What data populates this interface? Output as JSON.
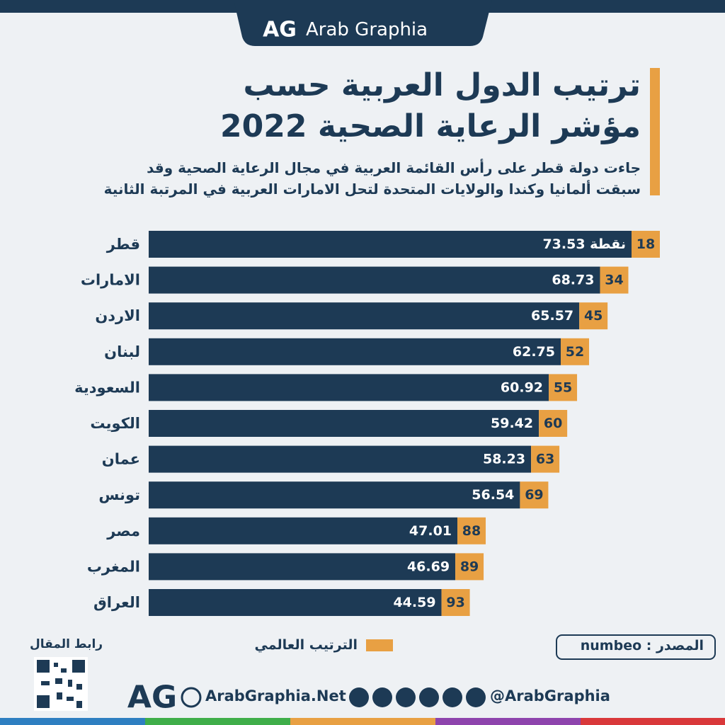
{
  "brand": "Arab Graphia",
  "chart_data": {
    "type": "bar",
    "title": [
      "ترتيب الدول العربية حسب",
      "مؤشر الرعاية الصحية 2022"
    ],
    "subtitle": [
      "جاءت دولة قطر على رأس القائمة العربية في مجال الرعاية الصحية وقد",
      "سبقت ألمانيا وكندا والولايات المتحدة لتحل الامارات العربية في المرتبة الثانية"
    ],
    "categories": [
      "قطر",
      "الامارات",
      "الاردن",
      "لبنان",
      "السعودية",
      "الكويت",
      "عمان",
      "تونس",
      "مصر",
      "المغرب",
      "العراق"
    ],
    "values": [
      73.53,
      68.73,
      65.57,
      62.75,
      60.92,
      59.42,
      58.23,
      56.54,
      47.01,
      46.69,
      44.59
    ],
    "value_labels": [
      "73.53 نقطة",
      "68.73",
      "65.57",
      "62.75",
      "60.92",
      "59.42",
      "58.23",
      "56.54",
      "47.01",
      "46.69",
      "44.59"
    ],
    "color": "#1d3a55",
    "ranks": {
      "name": "الترتيب العالمي",
      "color": "#e8a043",
      "values": [
        18,
        34,
        45,
        52,
        55,
        60,
        63,
        69,
        88,
        89,
        93
      ]
    },
    "source": "المصدر : numbeo"
  },
  "footer": {
    "article_link": "رابط المقال",
    "website": "ArabGraphia.Net",
    "handle": "@ArabGraphia"
  }
}
